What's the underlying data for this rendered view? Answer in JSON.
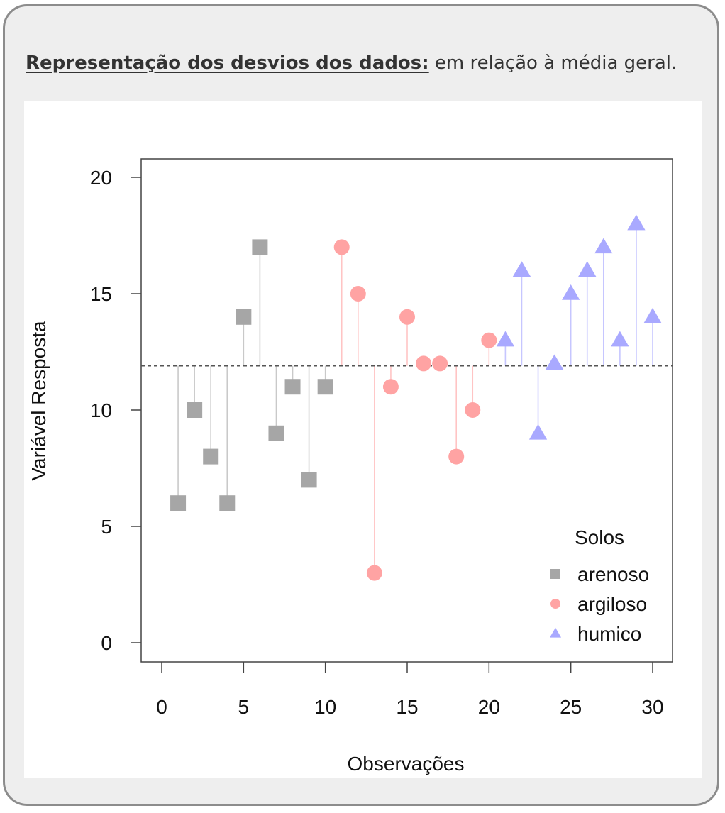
{
  "heading": {
    "bold": "Representação dos desvios dos dados:",
    "rest": " em relação à média geral."
  },
  "chart_data": {
    "type": "scatter",
    "xlabel": "Observações",
    "ylabel": "Variável Resposta",
    "xlim": [
      0,
      30
    ],
    "ylim": [
      0,
      20
    ],
    "x_ticks": [
      "0",
      "5",
      "10",
      "15",
      "20",
      "25",
      "30"
    ],
    "y_ticks": [
      "0",
      "5",
      "10",
      "15",
      "20"
    ],
    "mean": 11.9,
    "legend_title": "Solos",
    "legend_position": "bottom-right",
    "series": [
      {
        "name": "arenoso",
        "marker": "square",
        "color": "#a6a6a6",
        "stem_color": "#c9c9c9",
        "x": [
          1,
          2,
          3,
          4,
          5,
          6,
          7,
          8,
          9,
          10
        ],
        "y": [
          6,
          10,
          8,
          6,
          14,
          17,
          9,
          11,
          7,
          11
        ]
      },
      {
        "name": "argiloso",
        "marker": "circle",
        "color": "#ffa3a3",
        "stem_color": "#ffc4c4",
        "x": [
          11,
          12,
          13,
          14,
          15,
          16,
          17,
          18,
          19,
          20
        ],
        "y": [
          17,
          15,
          3,
          11,
          14,
          12,
          12,
          8,
          10,
          13
        ]
      },
      {
        "name": "humico",
        "marker": "triangle",
        "color": "#a9a9ff",
        "stem_color": "#c6c6ff",
        "x": [
          21,
          22,
          23,
          24,
          25,
          26,
          27,
          28,
          29,
          30
        ],
        "y": [
          13,
          16,
          9,
          12,
          15,
          16,
          17,
          13,
          18,
          14
        ]
      }
    ]
  }
}
